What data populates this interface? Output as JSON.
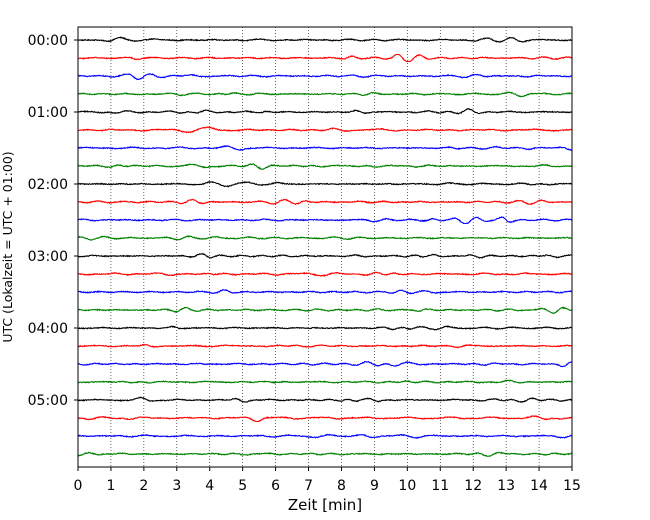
{
  "chart_data": {
    "type": "line",
    "title": "",
    "xlabel": "Zeit  [min]",
    "ylabel": "UTC (Lokalzeit = UTC + 01:00)",
    "xlim": [
      0,
      15
    ],
    "x_ticks": [
      "0",
      "1",
      "2",
      "3",
      "4",
      "5",
      "6",
      "7",
      "8",
      "9",
      "10",
      "11",
      "12",
      "13",
      "14",
      "15"
    ],
    "y_tick_labels": [
      "00:00",
      "01:00",
      "02:00",
      "03:00",
      "04:00",
      "05:00"
    ],
    "traces_per_hour": 4,
    "trace_count": 24,
    "trace_interval_min": 15,
    "trace_colors": [
      "#000000",
      "#ff0000",
      "#0000ff",
      "#008000"
    ],
    "vertical_grid": "dotted",
    "legend": "none",
    "signal": "low-amplitude seismic noise, ~8 oscillations per minute"
  }
}
